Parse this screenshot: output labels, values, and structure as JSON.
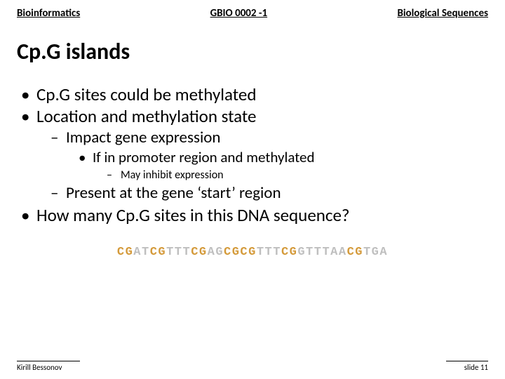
{
  "header": {
    "left": "Bioinformatics",
    "center": "GBIO 0002 -1",
    "right": "Biological Sequences"
  },
  "title": "Cp.G islands",
  "bullets": {
    "b1": "Cp.G sites could be methylated",
    "b2": "Location and methylation state",
    "b2a": "Impact gene expression",
    "b2a1": "If in promoter region and methylated",
    "b2a1a": "May inhibit expression",
    "b2b": "Present at the gene ‘start’ region",
    "b3": "How many Cp.G sites in this DNA sequence?"
  },
  "dna": {
    "segments": [
      {
        "t": "CG",
        "c": "#d49a3a"
      },
      {
        "t": "AT",
        "c": "#bfbfbf"
      },
      {
        "t": "CG",
        "c": "#d49a3a"
      },
      {
        "t": "TTT",
        "c": "#bfbfbf"
      },
      {
        "t": "CG",
        "c": "#d49a3a"
      },
      {
        "t": "AG",
        "c": "#bfbfbf"
      },
      {
        "t": "CGCG",
        "c": "#d49a3a"
      },
      {
        "t": "TTT",
        "c": "#bfbfbf"
      },
      {
        "t": "CG",
        "c": "#d49a3a"
      },
      {
        "t": "GTTTAA",
        "c": "#bfbfbf"
      },
      {
        "t": "CG",
        "c": "#d49a3a"
      },
      {
        "t": "TGA",
        "c": "#bfbfbf"
      }
    ]
  },
  "footer": {
    "left": "Kirill Bessonov",
    "right": "slide 11"
  }
}
